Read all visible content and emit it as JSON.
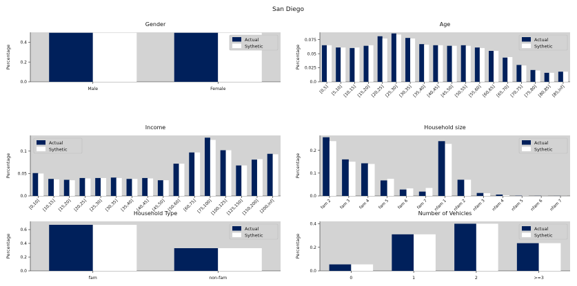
{
  "figure_title": "San Diego",
  "colors": {
    "actual": "#00205b",
    "synthetic": "#ffffff",
    "panel_bg": "#d3d3d3"
  },
  "chart_data": [
    {
      "type": "bar",
      "title": "Gender",
      "ylabel": "Percentage",
      "xlabel": "",
      "legend": "top-right",
      "ylim": [
        0,
        0.5
      ],
      "yticks": [
        0.0,
        0.2,
        0.4
      ],
      "categories": [
        "Male",
        "Female"
      ],
      "rotate_xticks": false,
      "series": [
        {
          "name": "Actual",
          "values": [
            0.495,
            0.495
          ]
        },
        {
          "name": "Sythetic",
          "values": [
            0.495,
            0.495
          ]
        }
      ]
    },
    {
      "type": "bar",
      "title": "Age",
      "ylabel": "Percentage",
      "xlabel": "",
      "legend": "top-right",
      "ylim": [
        0,
        0.088
      ],
      "yticks": [
        0.0,
        0.025,
        0.05,
        0.075
      ],
      "categories": [
        "[0,5]",
        "[5,10]",
        "[10,15]",
        "[15,20]",
        "[20,25]",
        "[25,30]",
        "[30,35]",
        "[35,40]",
        "[40,45]",
        "[45,50]",
        "[50,55]",
        "[55,60]",
        "[60,65]",
        "[65,70]",
        "[70,75]",
        "[75,80]",
        "[80,85]",
        "[85,inf]"
      ],
      "rotate_xticks": true,
      "series": [
        {
          "name": "Actual",
          "values": [
            0.065,
            0.061,
            0.06,
            0.064,
            0.081,
            0.086,
            0.078,
            0.067,
            0.065,
            0.064,
            0.065,
            0.061,
            0.055,
            0.043,
            0.03,
            0.021,
            0.016,
            0.018
          ]
        },
        {
          "name": "Sythetic",
          "values": [
            0.065,
            0.061,
            0.061,
            0.065,
            0.077,
            0.084,
            0.077,
            0.066,
            0.065,
            0.064,
            0.064,
            0.06,
            0.055,
            0.044,
            0.029,
            0.02,
            0.016,
            0.018
          ]
        }
      ]
    },
    {
      "type": "bar",
      "title": "Income",
      "ylabel": "Percentage",
      "xlabel": "",
      "legend": "top-left",
      "ylim": [
        0,
        0.135
      ],
      "yticks": [
        0.0,
        0.05,
        0.1
      ],
      "categories": [
        "[0,10]",
        "[10,15]",
        "[15,20]",
        "[20,25]",
        "[25,30]",
        "[30,35]",
        "[35,40]",
        "[40,45]",
        "[45,50]",
        "[50,60]",
        "[60,75]",
        "[75,100]",
        "[100,125]",
        "[125,150]",
        "[150,200]",
        "[200,inf]"
      ],
      "rotate_xticks": true,
      "series": [
        {
          "name": "Actual",
          "values": [
            0.051,
            0.038,
            0.036,
            0.04,
            0.04,
            0.041,
            0.038,
            0.04,
            0.035,
            0.072,
            0.097,
            0.13,
            0.102,
            0.068,
            0.081,
            0.094
          ]
        },
        {
          "name": "Sythetic",
          "values": [
            0.05,
            0.037,
            0.035,
            0.039,
            0.04,
            0.04,
            0.038,
            0.039,
            0.035,
            0.072,
            0.097,
            0.125,
            0.102,
            0.068,
            0.082,
            0.093
          ]
        }
      ]
    },
    {
      "type": "bar",
      "title": "Household size",
      "ylabel": "Percentage",
      "xlabel": "",
      "legend": "top-right",
      "ylim": [
        0,
        0.265
      ],
      "yticks": [
        0.0,
        0.1,
        0.2
      ],
      "categories": [
        "fam 2",
        "fam 3",
        "fam 4",
        "fam 5",
        "fam 6",
        "fam 7",
        "nfam 1",
        "nfam 2",
        "nfam 3",
        "nfam 4",
        "nfam 5",
        "nfam 6",
        "nfam 7"
      ],
      "rotate_xticks": true,
      "series": [
        {
          "name": "Actual",
          "values": [
            0.257,
            0.16,
            0.143,
            0.068,
            0.028,
            0.019,
            0.24,
            0.071,
            0.013,
            0.006,
            0.001,
            0.0005,
            0.0003
          ]
        },
        {
          "name": "Sythetic",
          "values": [
            0.24,
            0.15,
            0.14,
            0.075,
            0.033,
            0.035,
            0.228,
            0.071,
            0.012,
            0.003,
            0.001,
            0.0005,
            0.0003
          ]
        }
      ]
    },
    {
      "type": "bar",
      "title": "Household Type",
      "ylabel": "Percentage",
      "xlabel": "",
      "legend": "top-right",
      "ylim": [
        0,
        0.72
      ],
      "yticks": [
        0.0,
        0.2,
        0.4,
        0.6
      ],
      "categories": [
        "fam",
        "non-fam"
      ],
      "rotate_xticks": false,
      "series": [
        {
          "name": "Actual",
          "values": [
            0.67,
            0.33
          ]
        },
        {
          "name": "Sythetic",
          "values": [
            0.67,
            0.33
          ]
        }
      ]
    },
    {
      "type": "bar",
      "title": "Number of Vehicles",
      "ylabel": "Percentage",
      "xlabel": "",
      "legend": "top-right",
      "ylim": [
        0,
        0.42
      ],
      "yticks": [
        0.0,
        0.2,
        0.4
      ],
      "categories": [
        "0",
        "1",
        "2",
        ">=3"
      ],
      "rotate_xticks": false,
      "series": [
        {
          "name": "Actual",
          "values": [
            0.055,
            0.31,
            0.4,
            0.235
          ]
        },
        {
          "name": "Sythetic",
          "values": [
            0.055,
            0.31,
            0.4,
            0.235
          ]
        }
      ]
    }
  ]
}
